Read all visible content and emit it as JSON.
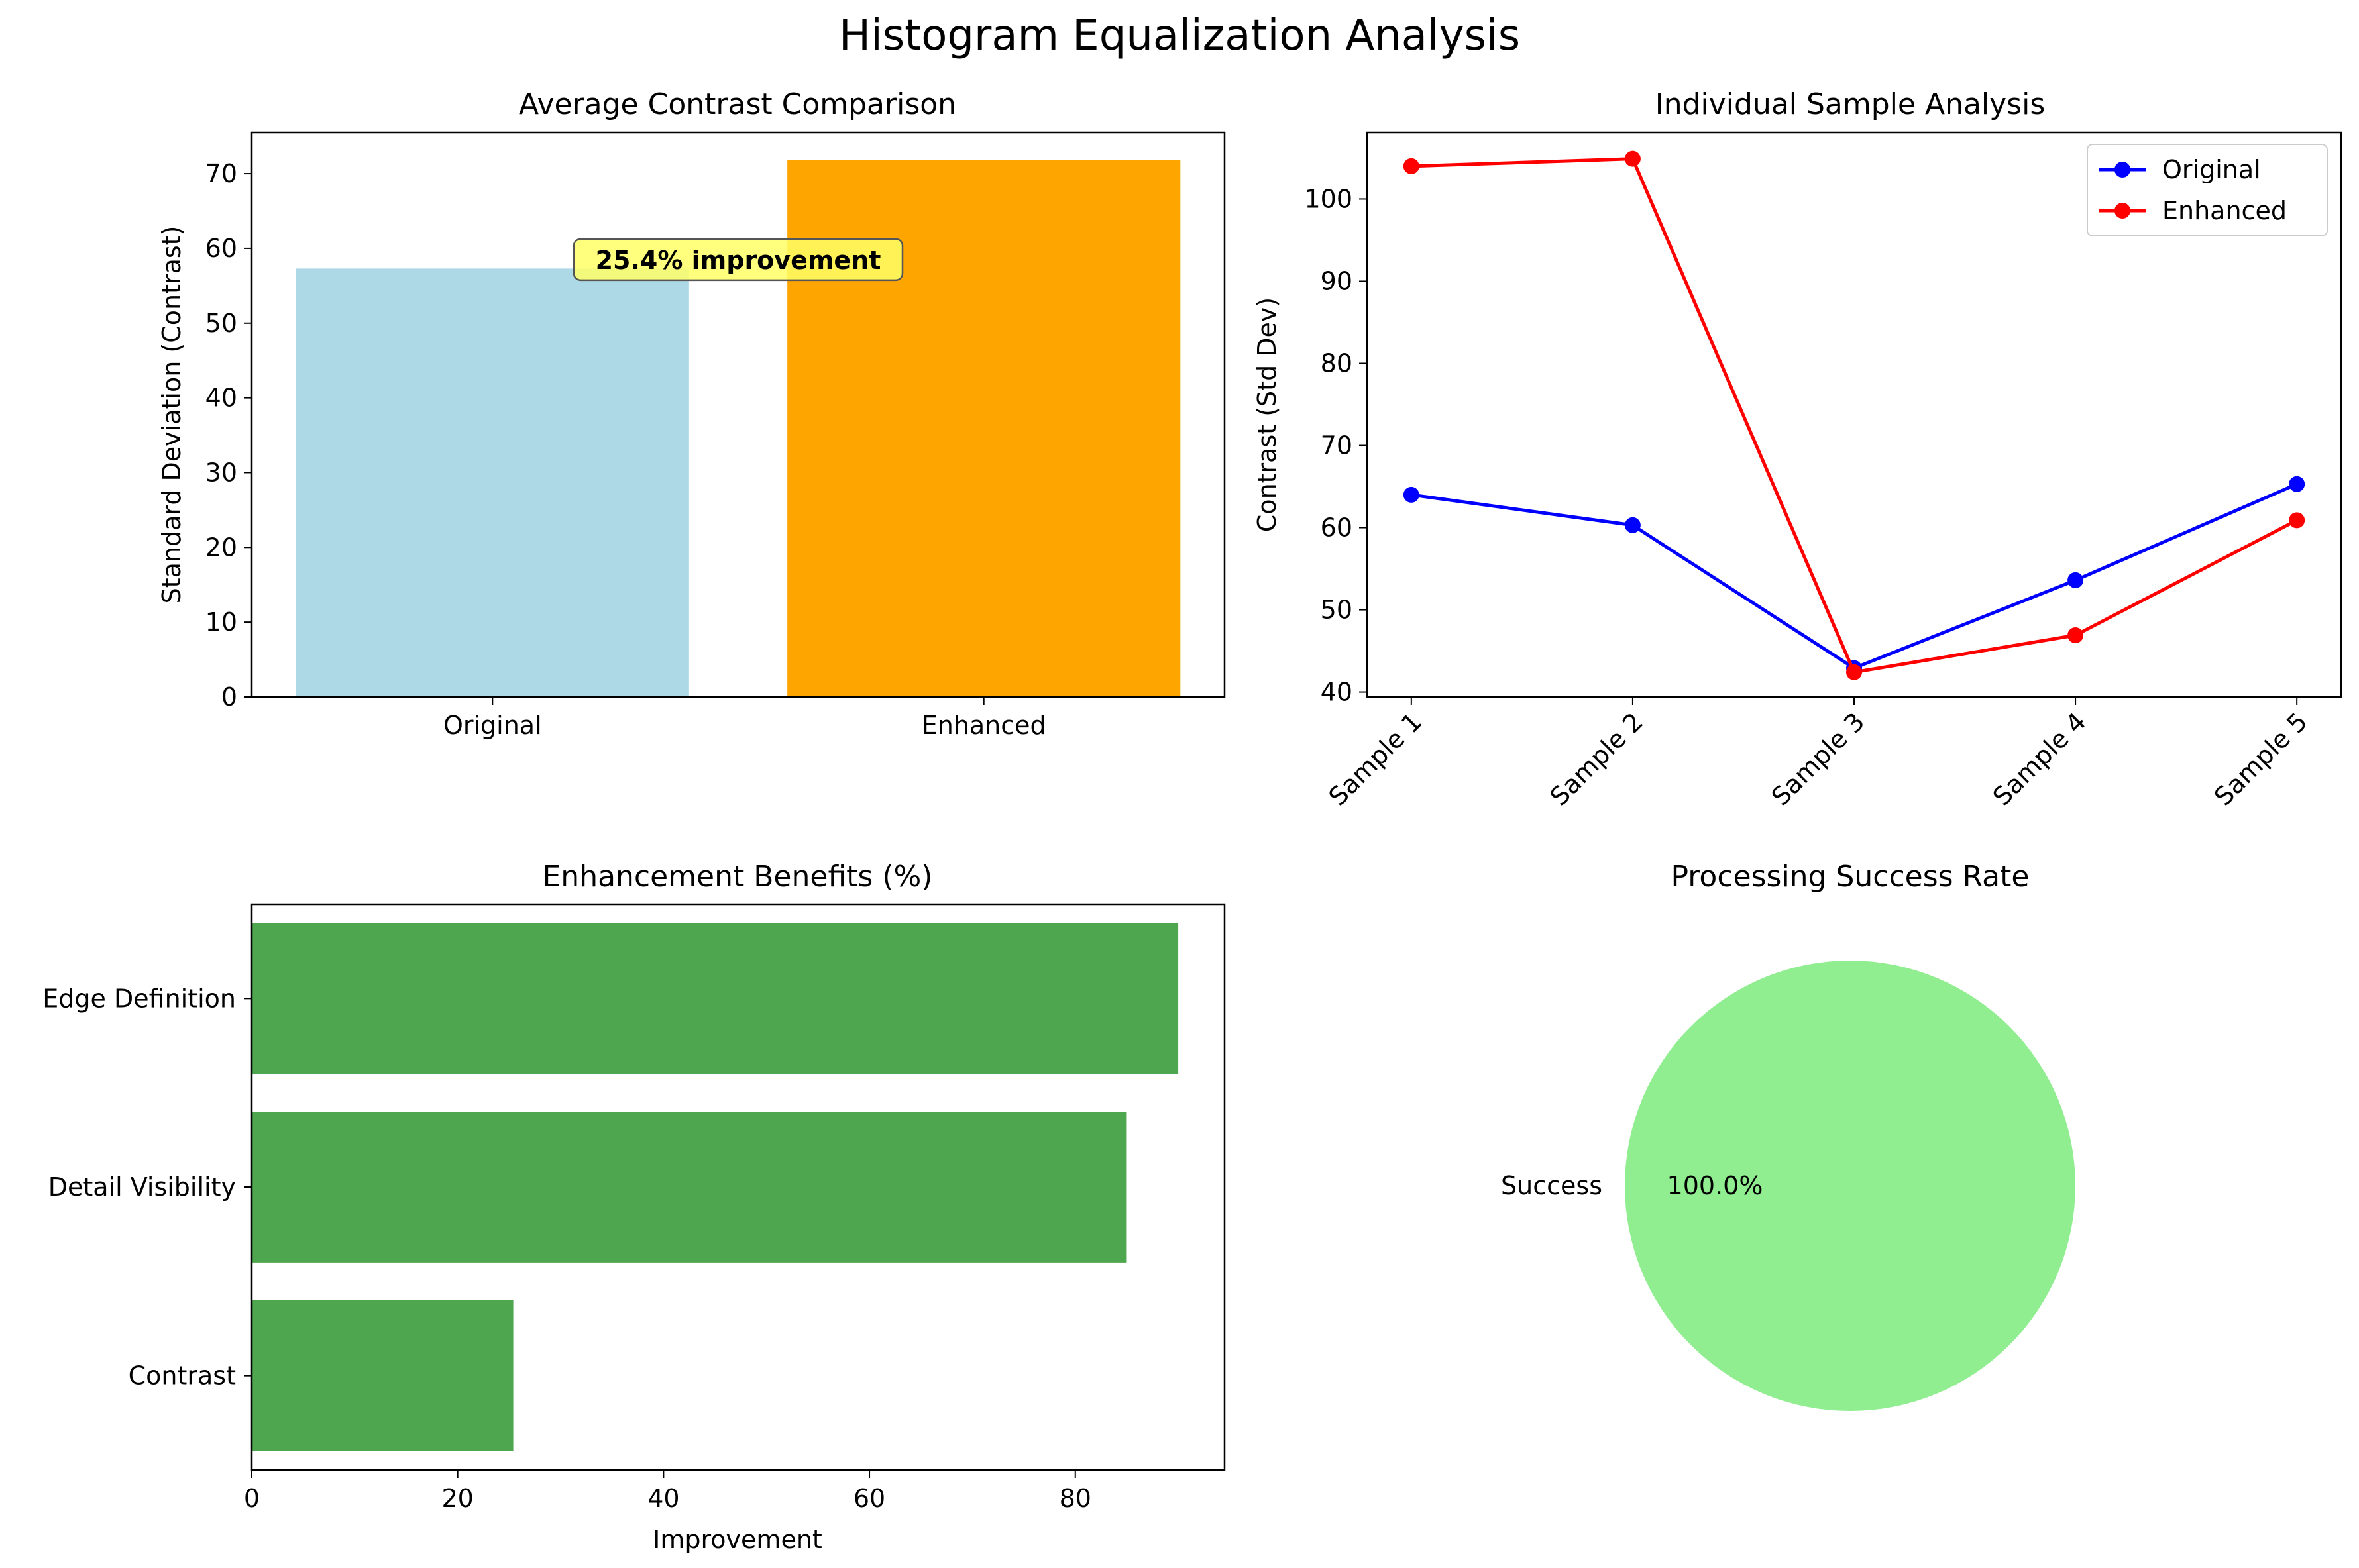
{
  "figure": {
    "title": "Histogram Equalization Analysis"
  },
  "colors": {
    "original_bar": "#add8e6",
    "enhanced_bar": "#ffa500",
    "original_line": "#0000ff",
    "enhanced_line": "#ff0000",
    "benefit_bar": "#4ea64e",
    "pie_success": "#90ee90",
    "annotation_bg": "#ffff66"
  },
  "chart_data": [
    {
      "type": "bar",
      "title": "Average Contrast Comparison",
      "categories": [
        "Original",
        "Enhanced"
      ],
      "values": [
        57.3,
        71.8
      ],
      "ylabel": "Standard Deviation (Contrast)",
      "xlabel": "",
      "ylim": [
        0,
        75.5
      ],
      "yticks": [
        0,
        10,
        20,
        30,
        40,
        50,
        60,
        70
      ],
      "annotation": {
        "text": "25.4% improvement",
        "x_category": 0.5,
        "y": 58.5
      },
      "grid": false
    },
    {
      "type": "line",
      "title": "Individual Sample Analysis",
      "x": [
        "Sample 1",
        "Sample 2",
        "Sample 3",
        "Sample 4",
        "Sample 5"
      ],
      "series": [
        {
          "name": "Original",
          "values": [
            64.0,
            60.3,
            42.9,
            53.6,
            65.3
          ]
        },
        {
          "name": "Enhanced",
          "values": [
            104.0,
            104.9,
            42.4,
            46.9,
            60.9
          ]
        }
      ],
      "ylabel": "Contrast (Std Dev)",
      "xlabel": "",
      "ylim": [
        39.4,
        108.1
      ],
      "yticks": [
        40,
        50,
        60,
        70,
        80,
        90,
        100
      ],
      "legend": "top-right",
      "grid": false
    },
    {
      "type": "bar",
      "orientation": "horizontal",
      "title": "Enhancement Benefits (%)",
      "categories": [
        "Contrast",
        "Detail Visibility",
        "Edge Definition"
      ],
      "values": [
        25.4,
        85,
        90
      ],
      "xlabel": "Improvement",
      "ylabel": "",
      "xlim": [
        0,
        94.5
      ],
      "xticks": [
        0,
        20,
        40,
        60,
        80
      ],
      "grid": false
    },
    {
      "type": "pie",
      "title": "Processing Success Rate",
      "labels": [
        "Success"
      ],
      "values": [
        100
      ],
      "autopct": [
        "100.0%"
      ]
    }
  ]
}
